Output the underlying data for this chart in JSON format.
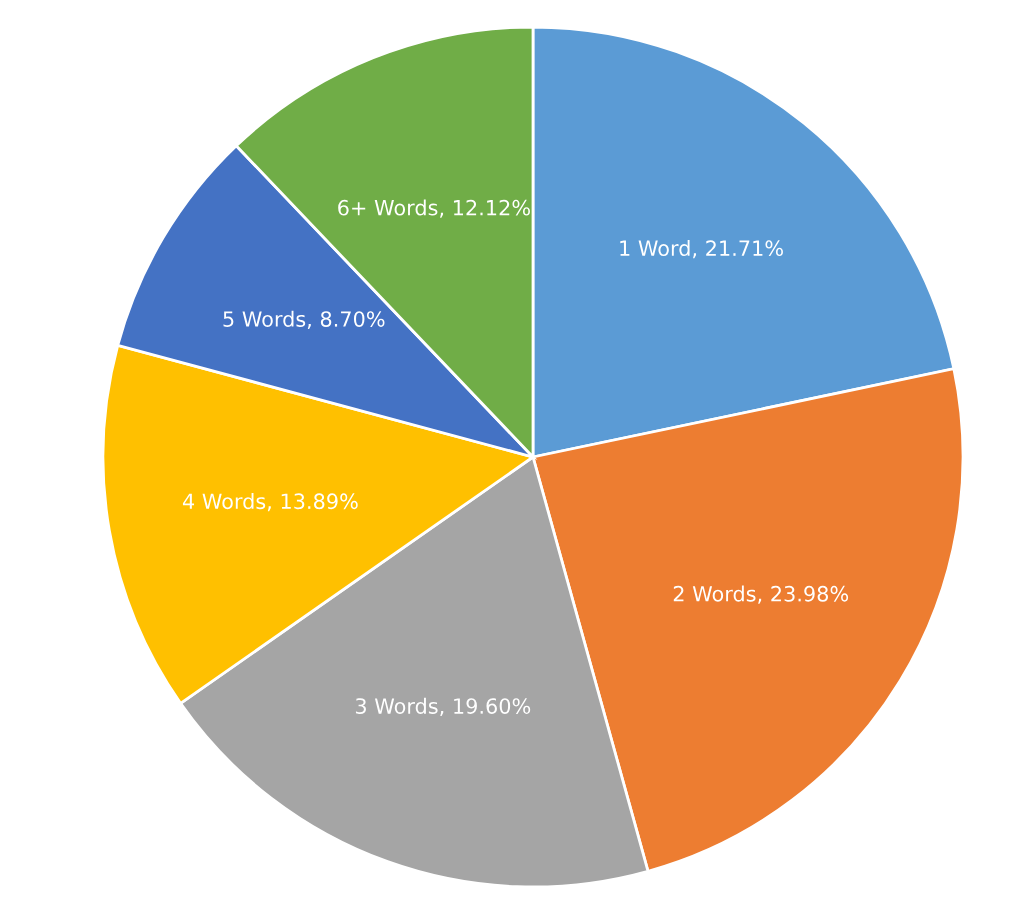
{
  "chart_data": {
    "type": "pie",
    "categories": [
      "1 Word",
      "2 Words",
      "3 Words",
      "4 Words",
      "5 Words",
      "6+ Words"
    ],
    "values": [
      21.71,
      23.98,
      19.6,
      13.89,
      8.7,
      12.12
    ],
    "value_labels": [
      "21.71%",
      "23.98%",
      "19.60%",
      "13.89%",
      "8.70%",
      "12.12%"
    ],
    "colors": [
      "#5b9bd5",
      "#ed7d31",
      "#a5a5a5",
      "#ffc000",
      "#4472c4",
      "#70ad47"
    ],
    "legend": false
  }
}
